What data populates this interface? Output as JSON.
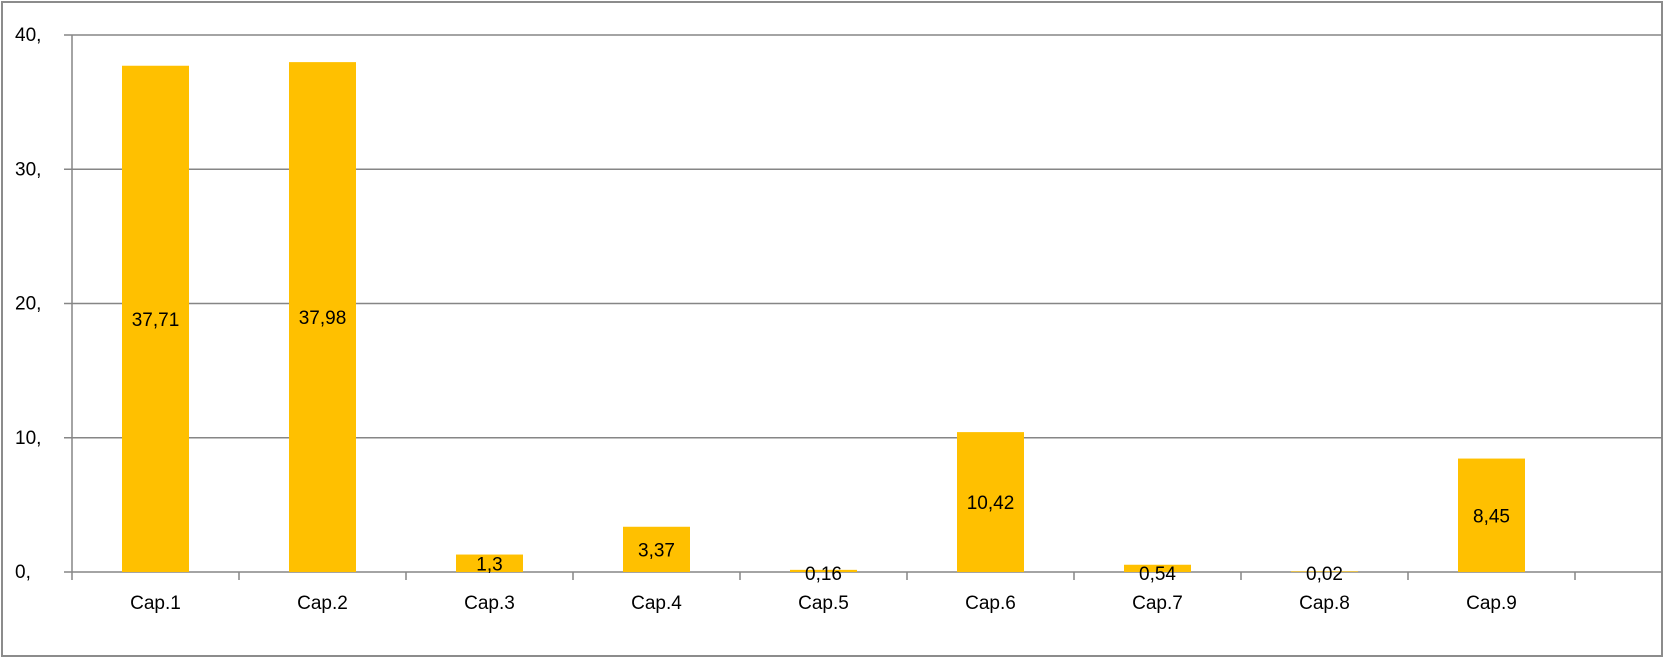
{
  "chart_data": {
    "type": "bar",
    "categories": [
      "Cap.1",
      "Cap.2",
      "Cap.3",
      "Cap.4",
      "Cap.5",
      "Cap.6",
      "Cap.7",
      "Cap.8",
      "Cap.9"
    ],
    "values": [
      37.71,
      37.98,
      1.3,
      3.37,
      0.16,
      10.42,
      0.54,
      0.02,
      8.45
    ],
    "data_labels": [
      "37,71",
      "37,98",
      "1,3",
      "3,37",
      "0,16",
      "10,42",
      "0,54",
      "0,02",
      "8,45"
    ],
    "y_ticks": [
      {
        "value": 0,
        "label": "0,"
      },
      {
        "value": 10,
        "label": "10,"
      },
      {
        "value": 20,
        "label": "20,"
      },
      {
        "value": 30,
        "label": "30,"
      },
      {
        "value": 40,
        "label": "40,"
      }
    ],
    "ylim": [
      0,
      40
    ],
    "title": "",
    "xlabel": "",
    "ylabel": "",
    "grid": true,
    "legend": "none",
    "bar_color": "#FFC000",
    "grid_color": "#868686"
  }
}
